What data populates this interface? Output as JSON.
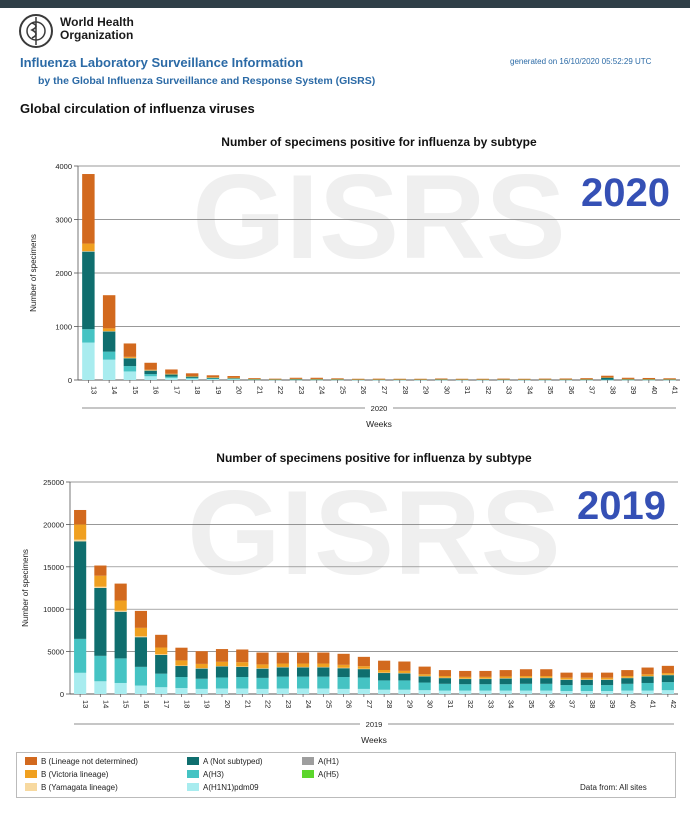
{
  "header": {
    "org_name": "World Health Organization",
    "title": "Influenza Laboratory Surveillance Information",
    "subtitle": "by the Global Influenza Surveillance and Response System (GISRS)",
    "generated": "generated on 16/10/2020 05:52:29 UTC",
    "section_title": "Global circulation of influenza viruses"
  },
  "legend_note": "Data from: All sites",
  "colors": {
    "B (Lineage not determined)": "#d2691e",
    "B (Victoria lineage)": "#f0a020",
    "B (Yamagata lineage)": "#f7d9a0",
    "A (Not subtyped)": "#0f6e6e",
    "A(H3)": "#45c3c3",
    "A(H1N1)pdm09": "#a8ecef",
    "A(H1)": "#9e9e9e",
    "A(H5)": "#5cd62c"
  },
  "chart_data": [
    {
      "type": "bar",
      "stacked": true,
      "title": "Number of specimens positive for influenza by subtype",
      "overlay_label": "2020",
      "watermark": "GISRS",
      "xlabel": "Weeks",
      "year_label": "2020",
      "ylabel": "Number of specimens",
      "ylim": [
        0,
        4000
      ],
      "yticks": [
        0,
        1000,
        2000,
        3000,
        4000
      ],
      "grid": true,
      "categories": [
        "13",
        "14",
        "15",
        "16",
        "17",
        "18",
        "19",
        "20",
        "21",
        "22",
        "23",
        "24",
        "25",
        "26",
        "27",
        "28",
        "29",
        "30",
        "31",
        "32",
        "33",
        "34",
        "35",
        "36",
        "37",
        "38",
        "39",
        "40",
        "41"
      ],
      "series": [
        {
          "name": "A(H1N1)pdm09",
          "values": [
            700,
            380,
            160,
            70,
            40,
            25,
            15,
            12,
            6,
            4,
            4,
            4,
            4,
            3,
            3,
            3,
            3,
            3,
            3,
            3,
            3,
            3,
            3,
            3,
            3,
            3,
            3,
            3,
            3
          ]
        },
        {
          "name": "A(H3)",
          "values": [
            250,
            150,
            100,
            40,
            25,
            15,
            12,
            10,
            5,
            4,
            4,
            4,
            4,
            3,
            3,
            3,
            3,
            4,
            3,
            3,
            4,
            3,
            4,
            4,
            4,
            5,
            4,
            4,
            4
          ]
        },
        {
          "name": "A (Not subtyped)",
          "values": [
            1450,
            380,
            150,
            70,
            45,
            30,
            22,
            18,
            8,
            6,
            12,
            10,
            8,
            6,
            6,
            6,
            6,
            8,
            6,
            6,
            6,
            6,
            6,
            6,
            8,
            40,
            12,
            10,
            8
          ]
        },
        {
          "name": "A(H1)",
          "values": [
            0,
            0,
            0,
            0,
            0,
            0,
            0,
            0,
            0,
            0,
            0,
            0,
            0,
            0,
            0,
            0,
            0,
            0,
            0,
            0,
            0,
            0,
            0,
            0,
            0,
            0,
            0,
            0,
            0
          ]
        },
        {
          "name": "A(H5)",
          "values": [
            0,
            0,
            0,
            0,
            0,
            0,
            0,
            0,
            0,
            0,
            0,
            0,
            0,
            0,
            0,
            0,
            0,
            0,
            0,
            0,
            0,
            0,
            0,
            0,
            0,
            0,
            0,
            0,
            0
          ]
        },
        {
          "name": "B (Yamagata lineage)",
          "values": [
            10,
            5,
            3,
            2,
            1,
            1,
            1,
            1,
            0,
            0,
            0,
            0,
            0,
            0,
            0,
            0,
            0,
            0,
            0,
            0,
            0,
            0,
            0,
            0,
            0,
            0,
            0,
            0,
            0
          ]
        },
        {
          "name": "B (Victoria lineage)",
          "values": [
            140,
            50,
            20,
            10,
            6,
            4,
            3,
            3,
            2,
            1,
            2,
            2,
            1,
            1,
            1,
            1,
            1,
            1,
            1,
            1,
            1,
            1,
            1,
            1,
            1,
            2,
            1,
            1,
            1
          ]
        },
        {
          "name": "B (Lineage not determined)",
          "values": [
            1300,
            620,
            250,
            130,
            80,
            50,
            35,
            30,
            15,
            10,
            20,
            22,
            14,
            10,
            12,
            10,
            10,
            12,
            10,
            10,
            12,
            10,
            12,
            14,
            18,
            30,
            22,
            20,
            16
          ]
        }
      ]
    },
    {
      "type": "bar",
      "stacked": true,
      "title": "Number of specimens positive for influenza by subtype",
      "overlay_label": "2019",
      "watermark": "GISRS",
      "xlabel": "Weeks",
      "year_label": "2019",
      "ylabel": "Number of specimens",
      "ylim": [
        0,
        25000
      ],
      "yticks": [
        0,
        5000,
        10000,
        15000,
        20000,
        25000
      ],
      "grid": true,
      "categories": [
        "13",
        "14",
        "15",
        "16",
        "17",
        "18",
        "19",
        "20",
        "21",
        "22",
        "23",
        "24",
        "25",
        "26",
        "27",
        "28",
        "29",
        "30",
        "31",
        "32",
        "33",
        "34",
        "35",
        "36",
        "37",
        "38",
        "39",
        "40",
        "41",
        "42"
      ],
      "series": [
        {
          "name": "A(H1N1)pdm09",
          "values": [
            2500,
            1500,
            1300,
            1000,
            800,
            700,
            600,
            650,
            650,
            600,
            650,
            650,
            650,
            600,
            600,
            500,
            500,
            450,
            400,
            400,
            400,
            400,
            400,
            400,
            350,
            350,
            350,
            400,
            400,
            450
          ]
        },
        {
          "name": "A(H3)",
          "values": [
            4000,
            3000,
            2900,
            2200,
            1600,
            1300,
            1200,
            1300,
            1350,
            1300,
            1400,
            1400,
            1400,
            1400,
            1350,
            1100,
            1100,
            900,
            800,
            750,
            750,
            750,
            800,
            800,
            700,
            700,
            700,
            800,
            900,
            950
          ]
        },
        {
          "name": "A (Not subtyped)",
          "values": [
            11500,
            8000,
            5500,
            3500,
            2200,
            1300,
            1200,
            1300,
            1200,
            1100,
            1100,
            1100,
            1100,
            1050,
            1000,
            900,
            850,
            750,
            700,
            650,
            650,
            700,
            700,
            700,
            650,
            650,
            650,
            700,
            800,
            850
          ]
        },
        {
          "name": "A(H1)",
          "values": [
            0,
            0,
            0,
            0,
            0,
            0,
            0,
            0,
            0,
            0,
            0,
            0,
            0,
            0,
            0,
            0,
            0,
            0,
            0,
            0,
            0,
            0,
            0,
            0,
            0,
            0,
            0,
            0,
            0,
            0
          ]
        },
        {
          "name": "A(H5)",
          "values": [
            0,
            0,
            0,
            0,
            0,
            0,
            0,
            0,
            0,
            0,
            0,
            0,
            0,
            0,
            0,
            0,
            0,
            0,
            0,
            0,
            0,
            0,
            0,
            0,
            0,
            0,
            0,
            0,
            0,
            0
          ]
        },
        {
          "name": "B (Yamagata lineage)",
          "values": [
            200,
            150,
            120,
            100,
            80,
            60,
            50,
            50,
            50,
            40,
            40,
            40,
            40,
            40,
            30,
            30,
            30,
            30,
            20,
            20,
            20,
            20,
            20,
            20,
            20,
            20,
            20,
            20,
            20,
            20
          ]
        },
        {
          "name": "B (Victoria lineage)",
          "values": [
            1800,
            1300,
            1200,
            1000,
            800,
            600,
            500,
            500,
            500,
            450,
            400,
            400,
            400,
            350,
            300,
            300,
            250,
            200,
            200,
            200,
            200,
            200,
            200,
            200,
            200,
            200,
            200,
            200,
            200,
            200
          ]
        },
        {
          "name": "B (Lineage not determined)",
          "values": [
            1700,
            1200,
            2000,
            2000,
            1500,
            1500,
            1500,
            1500,
            1500,
            1400,
            1300,
            1300,
            1300,
            1300,
            1100,
            1100,
            1100,
            900,
            700,
            700,
            700,
            750,
            800,
            800,
            600,
            600,
            600,
            700,
            800,
            850
          ]
        }
      ]
    }
  ]
}
